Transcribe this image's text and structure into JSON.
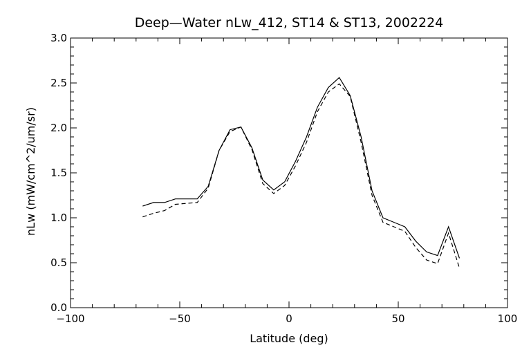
{
  "chart_data": {
    "type": "line",
    "title": "Deep—Water nLw_412, ST14 & ST13, 2002224",
    "xlabel": "Latitude (deg)",
    "ylabel": "nLw (mW/cm^2/um/sr)",
    "xlim": [
      -100,
      100
    ],
    "ylim": [
      0.0,
      3.0
    ],
    "xticks": [
      -100,
      -50,
      0,
      50,
      100
    ],
    "xtick_labels": [
      "−100",
      "−50",
      "0",
      "50",
      "100"
    ],
    "yticks": [
      0.0,
      0.5,
      1.0,
      1.5,
      2.0,
      2.5,
      3.0
    ],
    "ytick_labels": [
      "0.0",
      "0.5",
      "1.0",
      "1.5",
      "2.0",
      "2.5",
      "3.0"
    ],
    "grid": false,
    "series": [
      {
        "style": "solid",
        "color": "#000000",
        "x": [
          -67,
          -62,
          -57,
          -52,
          -47,
          -42,
          -37,
          -32,
          -27,
          -22,
          -17,
          -12,
          -7,
          -2,
          3,
          8,
          13,
          18,
          23,
          28,
          33,
          38,
          43,
          48,
          53,
          58,
          63,
          68,
          73,
          78
        ],
        "y": [
          1.13,
          1.17,
          1.17,
          1.21,
          1.21,
          1.21,
          1.35,
          1.75,
          1.98,
          2.01,
          1.78,
          1.42,
          1.31,
          1.4,
          1.63,
          1.9,
          2.23,
          2.45,
          2.56,
          2.36,
          1.9,
          1.3,
          1.0,
          0.95,
          0.9,
          0.74,
          0.62,
          0.58,
          0.9,
          0.55
        ]
      },
      {
        "style": "dashed",
        "color": "#000000",
        "x": [
          -67,
          -62,
          -57,
          -52,
          -47,
          -42,
          -37,
          -32,
          -27,
          -22,
          -17,
          -12,
          -7,
          -2,
          3,
          8,
          13,
          18,
          23,
          28,
          33,
          38,
          43,
          48,
          53,
          58,
          63,
          68,
          73,
          78
        ],
        "y": [
          1.01,
          1.05,
          1.08,
          1.15,
          1.16,
          1.17,
          1.33,
          1.75,
          1.96,
          2.01,
          1.76,
          1.38,
          1.27,
          1.36,
          1.58,
          1.84,
          2.18,
          2.4,
          2.49,
          2.35,
          1.84,
          1.25,
          0.95,
          0.9,
          0.85,
          0.67,
          0.53,
          0.49,
          0.83,
          0.44
        ]
      }
    ]
  }
}
